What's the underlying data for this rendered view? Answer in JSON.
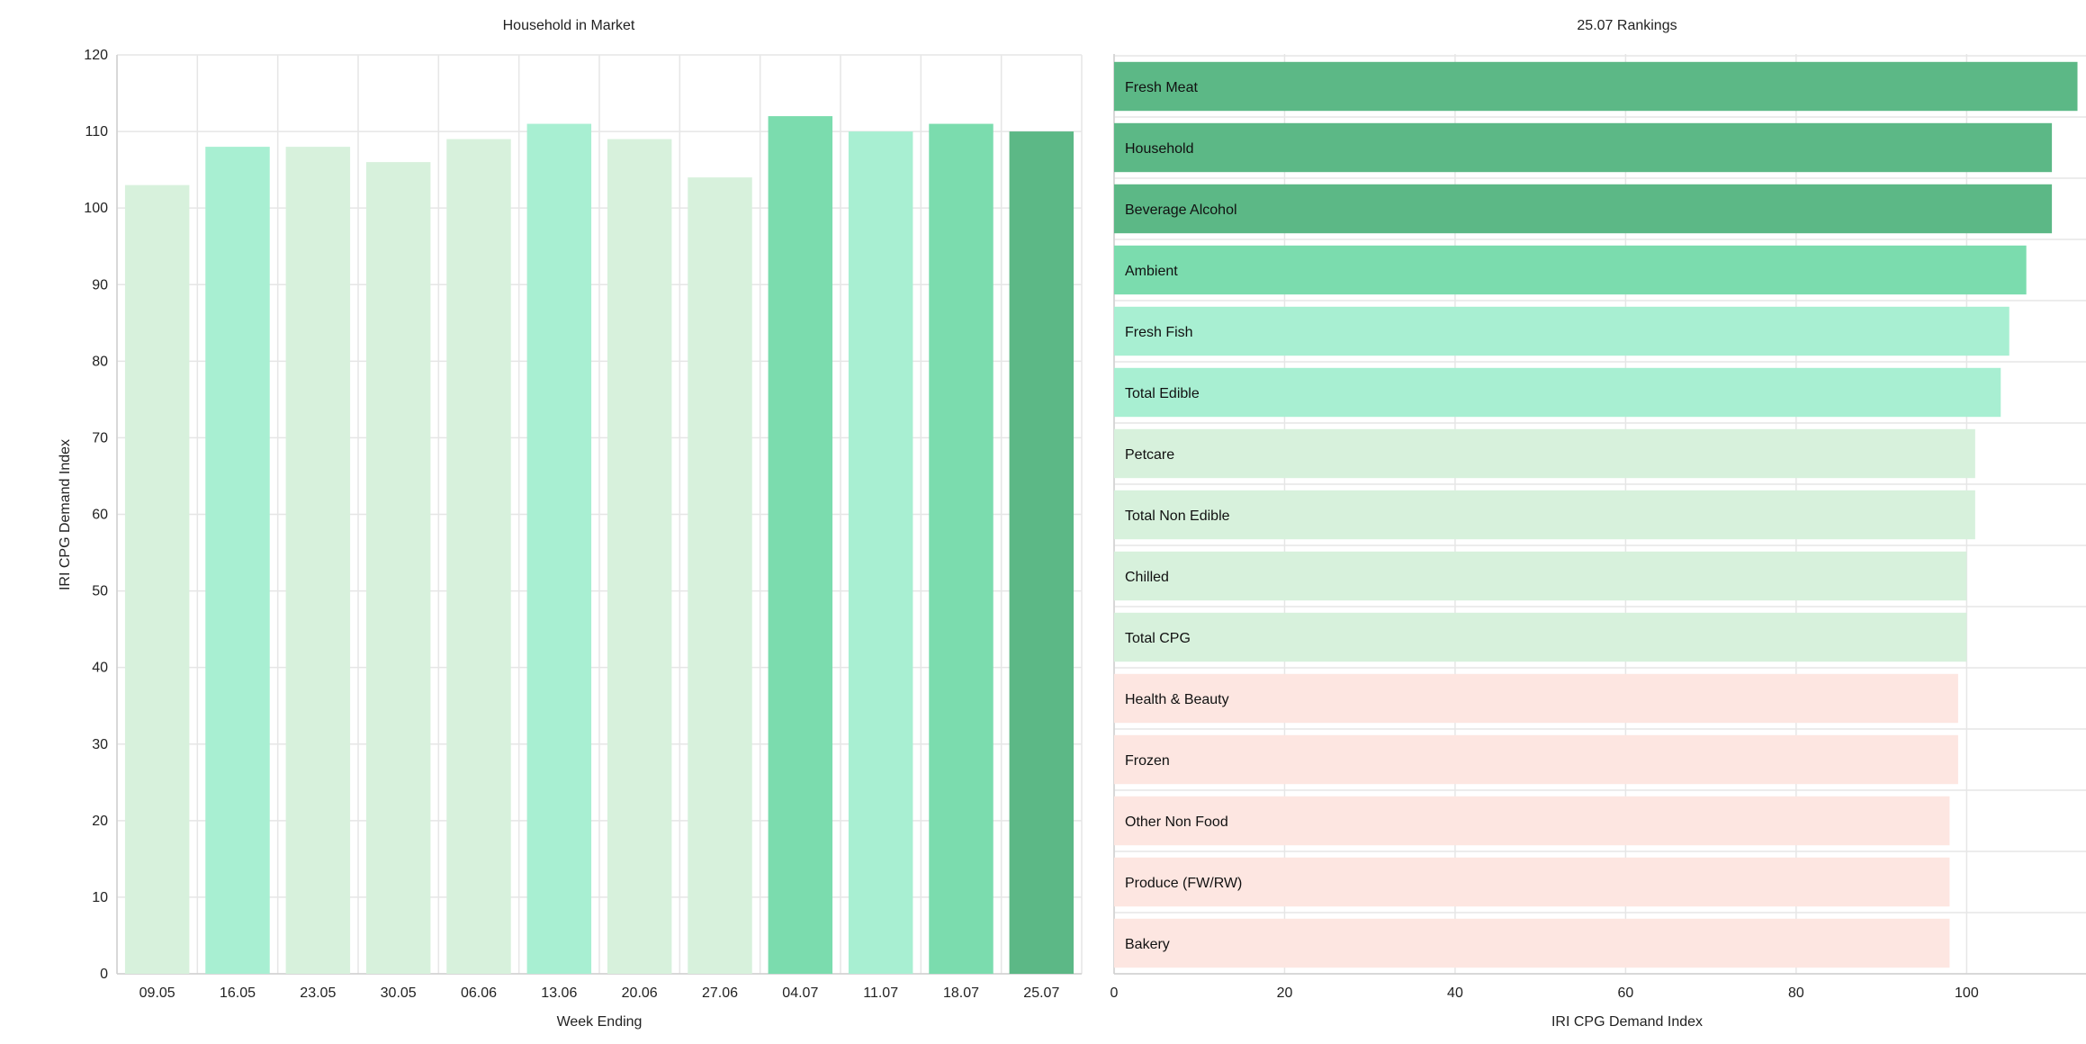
{
  "colors": {
    "dark_green": "#5cb886",
    "mid_green": "#7bdcae",
    "light_mint": "#a8efd2",
    "pale_green": "#d7f1dc",
    "pale_pink": "#fde6e1"
  },
  "chart_data": [
    {
      "type": "bar",
      "title": "Household in Market",
      "xlabel": "Week Ending",
      "ylabel": "IRI CPG Demand Index",
      "ylim": [
        0,
        120
      ],
      "yticks": [
        0,
        10,
        20,
        30,
        40,
        50,
        60,
        70,
        80,
        90,
        100,
        110,
        120
      ],
      "grid": true,
      "categories": [
        "09.05",
        "16.05",
        "23.05",
        "30.05",
        "06.06",
        "13.06",
        "20.06",
        "27.06",
        "04.07",
        "11.07",
        "18.07",
        "25.07"
      ],
      "values": [
        103,
        108,
        108,
        106,
        109,
        111,
        109,
        104,
        112,
        110,
        111,
        110
      ],
      "bar_colors": [
        "#d7f1dc",
        "#a8efd2",
        "#d7f1dc",
        "#d7f1dc",
        "#d7f1dc",
        "#a8efd2",
        "#d7f1dc",
        "#d7f1dc",
        "#7bdcae",
        "#a8efd2",
        "#7bdcae",
        "#5cb886"
      ]
    },
    {
      "type": "bar",
      "orientation": "horizontal",
      "title": "25.07 Rankings",
      "xlabel": "IRI CPG Demand Index",
      "ylabel": "",
      "xlim": [
        0,
        114
      ],
      "xticks": [
        0,
        20,
        40,
        60,
        80,
        100
      ],
      "grid": true,
      "categories": [
        "Fresh Meat",
        "Household",
        "Beverage Alcohol",
        "Ambient",
        "Fresh Fish",
        "Total Edible",
        "Petcare",
        "Total Non Edible",
        "Chilled",
        "Total CPG",
        "Health & Beauty",
        "Frozen",
        "Other Non Food",
        "Produce (FW/RW)",
        "Bakery"
      ],
      "values": [
        113,
        110,
        110,
        107,
        105,
        104,
        101,
        101,
        100,
        100,
        99,
        99,
        98,
        98,
        98
      ],
      "bar_colors": [
        "#5cb886",
        "#5cb886",
        "#5cb886",
        "#7bdcae",
        "#a8efd2",
        "#a8efd2",
        "#d7f1dc",
        "#d7f1dc",
        "#d7f1dc",
        "#d7f1dc",
        "#fde6e1",
        "#fde6e1",
        "#fde6e1",
        "#fde6e1",
        "#fde6e1"
      ]
    }
  ]
}
